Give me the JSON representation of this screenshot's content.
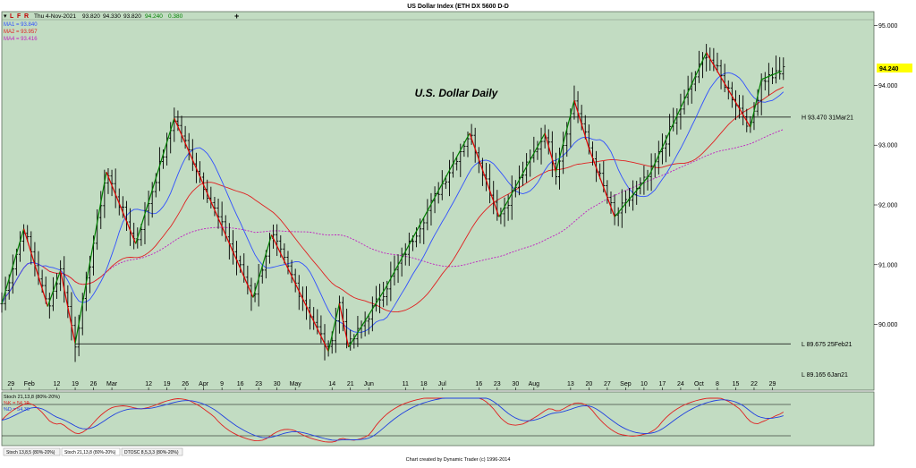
{
  "window": {
    "title": "US Dollar Index (ETH DX 5600 D-D",
    "header_icons": [
      "L",
      "F",
      "R"
    ],
    "header_date": "Thu 4-Nov-2021",
    "ohlc": {
      "open": "93.820",
      "high": "94.330",
      "low": "93.820",
      "close": "94.240",
      "change": "0.380"
    },
    "plus_icon": "+"
  },
  "moving_averages": [
    {
      "label": "MA1 = 93.840",
      "color": "#3050ff"
    },
    {
      "label": "MA2 = 93.957",
      "color": "#e02020"
    },
    {
      "label": "MA4 = 93.416",
      "color": "#c020c0"
    }
  ],
  "chart_data": {
    "type": "ohlc",
    "title": "U.S. Dollar Daily",
    "y_ticks": [
      "95.000",
      "94.000",
      "93.000",
      "92.000",
      "91.000",
      "90.000"
    ],
    "ylim": [
      88.9,
      95.1
    ],
    "current_price_label": "94.240",
    "x_labels": [
      "29",
      "Feb",
      "12",
      "19",
      "26",
      "Mar",
      "12",
      "19",
      "26",
      "Apr",
      "9",
      "16",
      "23",
      "30",
      "May",
      "14",
      "21",
      "Jun",
      "11",
      "18",
      "Jul",
      "16",
      "23",
      "30",
      "Aug",
      "13",
      "20",
      "27",
      "Sep",
      "10",
      "17",
      "24",
      "Oct",
      "8",
      "15",
      "22",
      "29"
    ],
    "x_label_positions": [
      0.5,
      1.5,
      3,
      4,
      5,
      6,
      8,
      9,
      10,
      11,
      12,
      13,
      14,
      15,
      16,
      18,
      19,
      20,
      22,
      23,
      24,
      26,
      27,
      28,
      29,
      31,
      32,
      33,
      34,
      35,
      36,
      37,
      38,
      39,
      40,
      41,
      42
    ],
    "x_range_weeks": [
      0,
      43
    ],
    "pivots": [
      {
        "w": 0.0,
        "p": 90.35
      },
      {
        "w": 1.2,
        "p": 91.6
      },
      {
        "w": 2.5,
        "p": 90.3
      },
      {
        "w": 3.2,
        "p": 90.9
      },
      {
        "w": 4.0,
        "p": 89.68
      },
      {
        "w": 5.7,
        "p": 92.55
      },
      {
        "w": 7.3,
        "p": 91.35
      },
      {
        "w": 9.4,
        "p": 93.45
      },
      {
        "w": 13.7,
        "p": 90.45
      },
      {
        "w": 14.7,
        "p": 91.5
      },
      {
        "w": 17.8,
        "p": 89.55
      },
      {
        "w": 18.4,
        "p": 90.35
      },
      {
        "w": 18.9,
        "p": 89.62
      },
      {
        "w": 20.9,
        "p": 90.6
      },
      {
        "w": 25.5,
        "p": 93.2
      },
      {
        "w": 27.1,
        "p": 91.8
      },
      {
        "w": 29.6,
        "p": 93.2
      },
      {
        "w": 30.2,
        "p": 92.55
      },
      {
        "w": 31.2,
        "p": 93.75
      },
      {
        "w": 32.0,
        "p": 92.95
      },
      {
        "w": 33.4,
        "p": 91.8
      },
      {
        "w": 35.3,
        "p": 92.5
      },
      {
        "w": 38.4,
        "p": 94.55
      },
      {
        "w": 40.8,
        "p": 93.3
      },
      {
        "w": 41.4,
        "p": 94.1
      },
      {
        "w": 42.5,
        "p": 94.24
      }
    ],
    "up_swing_color": "#008000",
    "down_swing_color": "#e00000",
    "price_levels": [
      {
        "label": "H 93.470 31Mar21",
        "price": 93.47,
        "from_week": 9.4
      },
      {
        "label": "L 89.675 25Feb21",
        "price": 89.675,
        "from_week": 4.0
      },
      {
        "label": "L 89.165 6Jan21",
        "price": 89.165,
        "from_week": null
      }
    ],
    "stochastic": {
      "title": "Stoch 21,13,8 (80%-20%)",
      "k_label": "%K = 54.19",
      "d_label": "%D = 54.30",
      "k_color": "#e02020",
      "d_color": "#2040e0",
      "upper": 80,
      "lower": 20
    }
  },
  "footer": {
    "tabs": [
      "Stoch 13,8,5 (80%-20%)",
      "Stoch 21,13,8 (80%-20%)",
      "DTOSC 8,5,3,3 (80%-20%)"
    ],
    "credit": "Chart created by Dynamic Trader  (c) 1996-2014"
  },
  "colors": {
    "background": "#c2dcc2",
    "frame": "#ffffff"
  }
}
